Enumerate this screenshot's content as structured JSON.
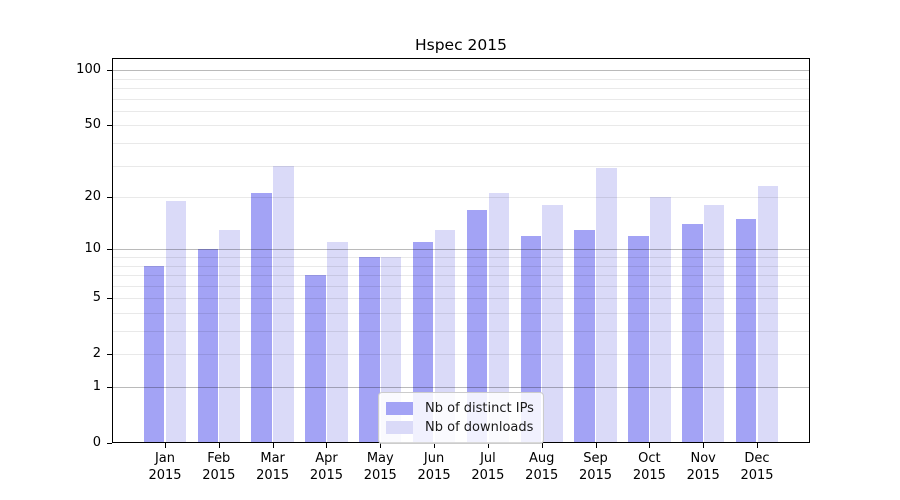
{
  "title": "Hspec 2015",
  "legend": {
    "items": [
      {
        "label": "Nb of distinct IPs"
      },
      {
        "label": "Nb of downloads"
      }
    ]
  },
  "y_axis": {
    "tick_labels": [
      "100",
      "50",
      "20",
      "10",
      "5",
      "2",
      "1",
      "0"
    ],
    "tick_values": [
      100,
      50,
      20,
      10,
      5,
      2,
      1,
      0
    ],
    "major_gridlines": [
      1,
      10,
      100
    ],
    "minor_gridlines": [
      2,
      3,
      4,
      5,
      6,
      7,
      8,
      9,
      20,
      30,
      40,
      50,
      60,
      70,
      80,
      90
    ],
    "scale": "log10(value+1)"
  },
  "x_axis": {
    "months": [
      "Jan",
      "Feb",
      "Mar",
      "Apr",
      "May",
      "Jun",
      "Jul",
      "Aug",
      "Sep",
      "Oct",
      "Nov",
      "Dec"
    ],
    "year": "2015"
  },
  "chart_data": {
    "type": "bar",
    "title": "Hspec 2015",
    "categories": [
      "Jan 2015",
      "Feb 2015",
      "Mar 2015",
      "Apr 2015",
      "May 2015",
      "Jun 2015",
      "Jul 2015",
      "Aug 2015",
      "Sep 2015",
      "Oct 2015",
      "Nov 2015",
      "Dec 2015"
    ],
    "series": [
      {
        "name": "Nb of distinct IPs",
        "color": "#a3a3f5",
        "values": [
          8,
          10,
          21,
          7,
          9,
          11,
          17,
          12,
          13,
          12,
          14,
          15
        ]
      },
      {
        "name": "Nb of downloads",
        "color": "#dadaf8",
        "values": [
          19,
          13,
          30,
          11,
          9,
          13,
          21,
          18,
          29,
          20,
          18,
          23
        ]
      }
    ],
    "xlabel": "",
    "ylabel": "",
    "y_scale": "log-like: position proportional to log10(value+1)",
    "ylim": [
      0,
      116
    ],
    "y_ticks": [
      0,
      1,
      2,
      5,
      10,
      20,
      50,
      100
    ],
    "grid": "horizontal major and minor gridlines drawn over bars",
    "legend_position": "inside, lower center"
  }
}
